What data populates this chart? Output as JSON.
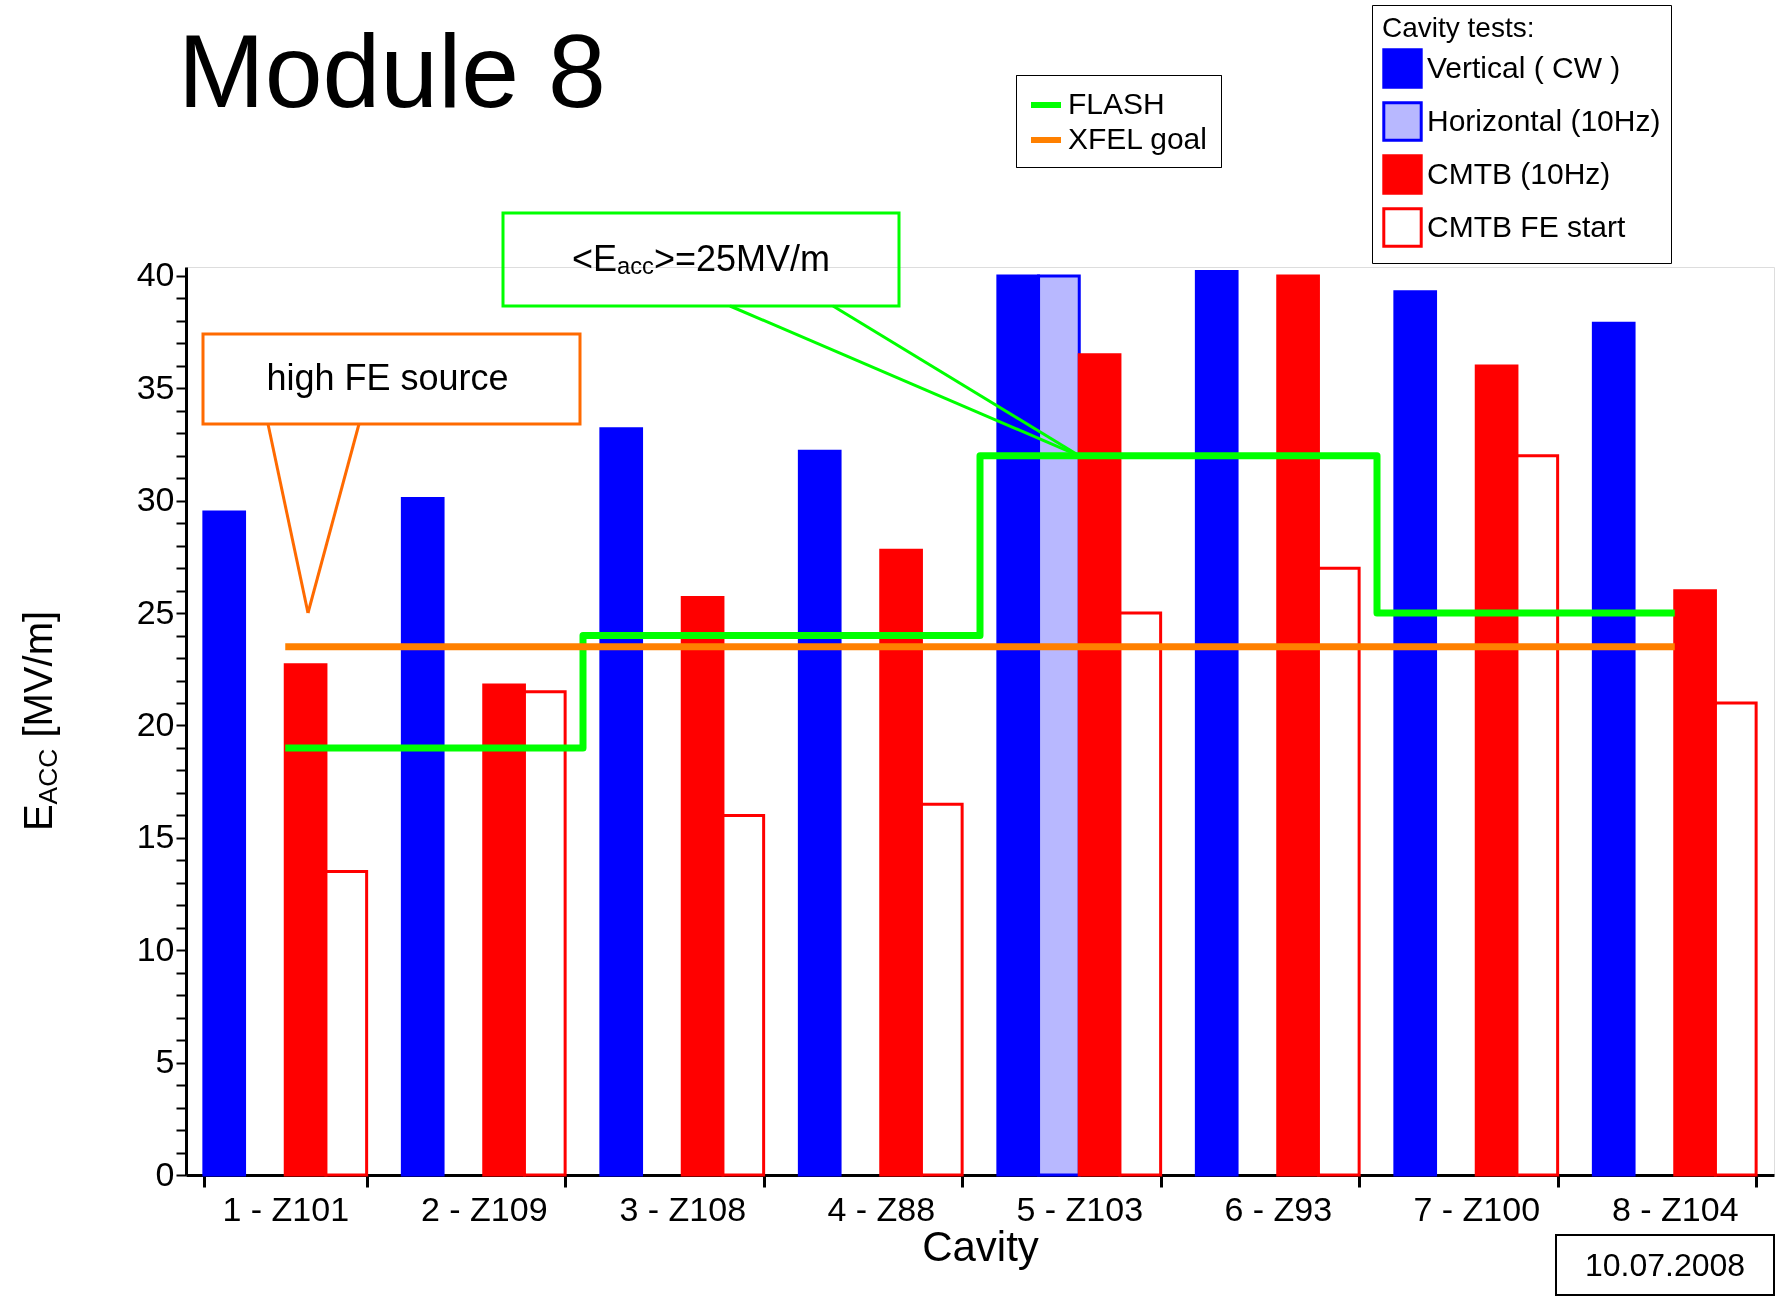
{
  "chart_data": {
    "type": "bar",
    "title": "Module 8",
    "xlabel": "Cavity",
    "ylabel": "E$_{ACC}$ [MV/m]",
    "legend_title": "Cavity tests:",
    "categories": [
      "1 - Z101",
      "2 - Z109",
      "3 - Z108",
      "4 - Z88",
      "5 - Z103",
      "6 - Z93",
      "7 - Z100",
      "8 - Z104"
    ],
    "series": [
      {
        "name": "Vertical ( CW )",
        "color": "#0000ff",
        "values": [
          29.5,
          30.1,
          33.2,
          32.2,
          40,
          40.2,
          39.3,
          37.9
        ]
      },
      {
        "name": "Horizontal (10Hz)",
        "color": "#0000ff",
        "values": [
          null,
          null,
          null,
          null,
          40,
          null,
          null,
          null
        ]
      },
      {
        "name": "CMTB (10Hz)",
        "color": "#ff0000",
        "values": [
          22.7,
          21.8,
          25.7,
          27.8,
          36.5,
          40,
          36,
          26
        ]
      },
      {
        "name": "CMTB FE start",
        "color": "#ff0000",
        "values": [
          13.5,
          21.5,
          16,
          16.5,
          25,
          27,
          32,
          21
        ]
      },
      {
        "name": "FLASH",
        "type": "step",
        "color": "#00ff00",
        "values": [
          19,
          19,
          24,
          24,
          32,
          32,
          25,
          25
        ]
      },
      {
        "name": "XFEL goal",
        "type": "line",
        "color": "#ff8000",
        "values": [
          23.5,
          23.5,
          23.5,
          23.5,
          23.5,
          23.5,
          23.5,
          23.5
        ]
      }
    ],
    "ylim": [
      0,
      40.4
    ],
    "yticks": [
      0,
      {
        "value": 1,
        "label": null
      },
      {
        "value": 2,
        "label": null
      },
      {
        "value": 3,
        "label": null
      },
      {
        "value": 4,
        "label": null
      },
      5,
      {
        "value": 6,
        "label": null
      },
      {
        "value": 7,
        "label": null
      },
      {
        "value": 8,
        "label": null
      },
      {
        "value": 9,
        "label": null
      },
      10,
      {
        "value": 11,
        "label": null
      },
      {
        "value": 12,
        "label": null
      },
      {
        "value": 13,
        "label": null
      },
      {
        "value": 14,
        "label": null
      },
      15,
      {
        "value": 16,
        "label": null
      },
      {
        "value": 17,
        "label": null
      },
      {
        "value": 18,
        "label": null
      },
      {
        "value": 19,
        "label": null
      },
      20,
      {
        "value": 21,
        "label": null
      },
      {
        "value": 22,
        "label": null
      },
      {
        "value": 23,
        "label": null
      },
      {
        "value": 24,
        "label": null
      },
      25,
      {
        "value": 26,
        "label": null
      },
      {
        "value": 27,
        "label": null
      },
      {
        "value": 28,
        "label": null
      },
      {
        "value": 29,
        "label": null
      },
      30,
      {
        "value": 31,
        "label": null
      },
      {
        "value": 32,
        "label": null
      },
      {
        "value": 33,
        "label": null
      },
      {
        "value": 34,
        "label": null
      },
      35,
      {
        "value": 36,
        "label": null
      },
      {
        "value": 37,
        "label": null
      },
      {
        "value": 38,
        "label": null
      },
      {
        "value": 39,
        "label": null
      },
      40
    ],
    "annotations": [
      "high FE source",
      {
        "text": "<E$_{acc}$>=25MV/m",
        "x": "5 - Z103",
        "y": 32
      },
      "10.07.2008"
    ],
    "grid": false,
    "legend": "top right"
  }
}
